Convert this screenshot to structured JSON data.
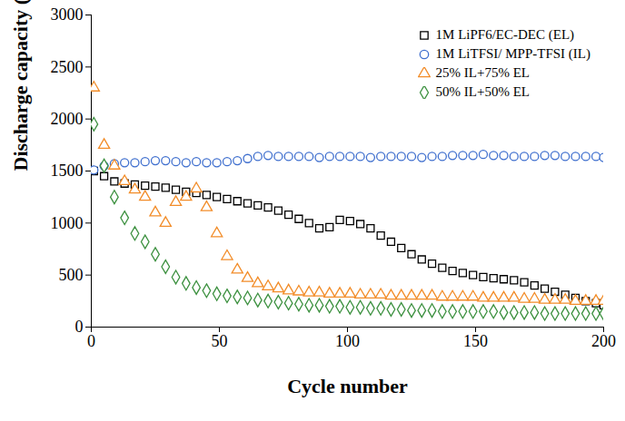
{
  "chart_data": {
    "type": "scatter",
    "x_label": "Cycle number",
    "y_label": "Discharge capacity (mAh/g)",
    "xlim": [
      0,
      200
    ],
    "xticks": [
      0,
      50,
      100,
      150,
      200
    ],
    "ylim": [
      0,
      3000
    ],
    "yticks": [
      0,
      500,
      1000,
      1500,
      2000,
      2500,
      3000
    ],
    "grid": false,
    "legend": "upper right",
    "x": [
      1,
      5,
      9,
      13,
      17,
      21,
      25,
      29,
      33,
      37,
      41,
      45,
      49,
      53,
      57,
      61,
      65,
      69,
      73,
      77,
      81,
      85,
      89,
      93,
      97,
      101,
      105,
      109,
      113,
      117,
      121,
      125,
      129,
      133,
      137,
      141,
      145,
      149,
      153,
      157,
      161,
      165,
      169,
      173,
      177,
      181,
      185,
      189,
      193,
      197,
      200
    ],
    "series": [
      {
        "name": "1M LiPF6/EC-DEC (EL)",
        "color": "#000000",
        "marker": "square",
        "values": [
          1500,
          1450,
          1400,
          1380,
          1370,
          1360,
          1350,
          1340,
          1320,
          1300,
          1290,
          1270,
          1250,
          1230,
          1210,
          1190,
          1170,
          1150,
          1120,
          1080,
          1040,
          1000,
          950,
          960,
          1030,
          1020,
          990,
          950,
          880,
          820,
          760,
          700,
          650,
          610,
          570,
          540,
          520,
          500,
          480,
          470,
          460,
          450,
          430,
          400,
          370,
          340,
          310,
          280,
          250,
          230,
          210
        ]
      },
      {
        "name": "1M LiTFSI/ MPP-TFSI (IL)",
        "color": "#3f6fce",
        "marker": "circle",
        "values": [
          1510,
          1550,
          1570,
          1580,
          1580,
          1590,
          1600,
          1600,
          1590,
          1580,
          1590,
          1580,
          1580,
          1590,
          1600,
          1620,
          1640,
          1650,
          1640,
          1640,
          1640,
          1640,
          1630,
          1640,
          1640,
          1640,
          1640,
          1630,
          1640,
          1640,
          1640,
          1640,
          1630,
          1640,
          1640,
          1650,
          1650,
          1650,
          1660,
          1650,
          1650,
          1640,
          1640,
          1640,
          1650,
          1650,
          1640,
          1640,
          1640,
          1640,
          1630
        ]
      },
      {
        "name": "25% IL+75% EL",
        "color": "#f28c28",
        "marker": "triangle",
        "values": [
          2300,
          1750,
          1550,
          1400,
          1320,
          1250,
          1100,
          1000,
          1200,
          1250,
          1330,
          1150,
          900,
          680,
          550,
          470,
          420,
          390,
          370,
          350,
          340,
          330,
          330,
          320,
          320,
          320,
          310,
          310,
          310,
          300,
          300,
          300,
          300,
          300,
          290,
          290,
          290,
          290,
          280,
          280,
          280,
          280,
          270,
          270,
          260,
          260,
          260,
          250,
          250,
          250,
          250
        ]
      },
      {
        "name": "50% IL+50% EL",
        "color": "#3d9140",
        "marker": "diamond",
        "values": [
          1950,
          1550,
          1250,
          1050,
          900,
          820,
          700,
          580,
          480,
          420,
          380,
          350,
          320,
          300,
          290,
          280,
          260,
          250,
          240,
          230,
          220,
          210,
          210,
          200,
          200,
          190,
          190,
          180,
          180,
          170,
          170,
          160,
          160,
          160,
          150,
          150,
          150,
          150,
          150,
          150,
          140,
          140,
          140,
          140,
          130,
          130,
          130,
          130,
          130,
          130,
          130
        ]
      }
    ]
  }
}
